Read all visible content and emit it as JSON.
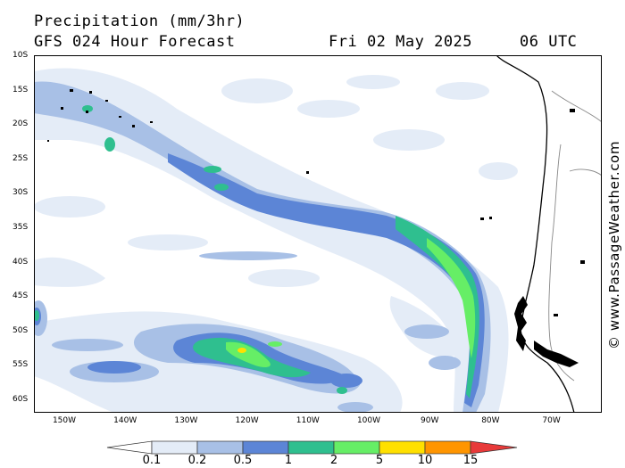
{
  "header": {
    "title": "Precipitation (mm/3hr)",
    "subtitle": "GFS 024 Hour Forecast",
    "date": "Fri 02 May 2025",
    "time": "06 UTC"
  },
  "credit": "© www.PassageWeather.com",
  "lat_labels": [
    "10S",
    "15S",
    "20S",
    "25S",
    "30S",
    "35S",
    "40S",
    "45S",
    "50S",
    "55S",
    "60S"
  ],
  "lon_labels": [
    "150W",
    "140W",
    "130W",
    "120W",
    "110W",
    "100W",
    "90W",
    "80W",
    "70W"
  ],
  "legend": {
    "labels": [
      "0.1",
      "0.2",
      "0.5",
      "1",
      "2",
      "5",
      "10",
      "15"
    ],
    "colors": [
      "#ffffff",
      "#e4ecf7",
      "#a8c0e6",
      "#5c85d6",
      "#2fbf8f",
      "#66ee66",
      "#ffe000",
      "#ff9500",
      "#e83a3a"
    ]
  },
  "palette": {
    "land": "#ffffff",
    "coast": "#000000",
    "border": "#888888"
  }
}
